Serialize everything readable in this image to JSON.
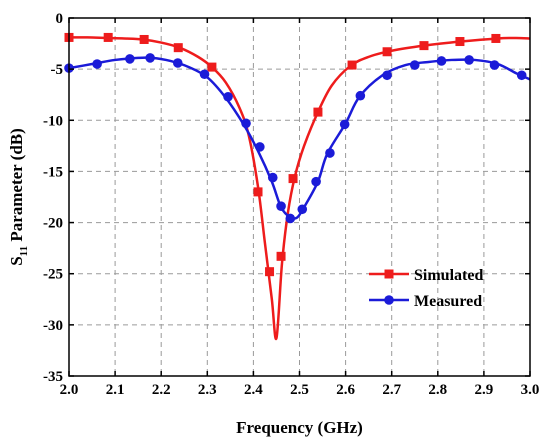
{
  "chart_data": {
    "type": "line",
    "xlabel": "Frequency (GHz)",
    "ylabel_parts": [
      "S",
      "11",
      " Parameter (dB)"
    ],
    "xlim": [
      2.0,
      3.0
    ],
    "ylim": [
      -35,
      0
    ],
    "x_ticks": [
      "2.0",
      "2.1",
      "2.2",
      "2.3",
      "2.4",
      "2.5",
      "2.6",
      "2.7",
      "2.8",
      "2.9",
      "3.0"
    ],
    "y_ticks": [
      "0",
      "-5",
      "-10",
      "-15",
      "-20",
      "-25",
      "-30",
      "-35"
    ],
    "x_tick_values": [
      2.0,
      2.1,
      2.2,
      2.3,
      2.4,
      2.5,
      2.6,
      2.7,
      2.8,
      2.9,
      3.0
    ],
    "y_tick_values": [
      0,
      -5,
      -10,
      -15,
      -20,
      -25,
      -30,
      -35
    ],
    "grid": true,
    "legend_position": "lower-right",
    "series": [
      {
        "name": "Simulated",
        "color": "#ee1c1c",
        "marker": "square",
        "x": [
          2.0,
          2.04,
          2.08,
          2.12,
          2.16,
          2.2,
          2.24,
          2.28,
          2.31,
          2.34,
          2.37,
          2.39,
          2.41,
          2.425,
          2.44,
          2.45,
          2.462,
          2.475,
          2.49,
          2.51,
          2.54,
          2.57,
          2.61,
          2.65,
          2.7,
          2.77,
          2.85,
          2.93,
          2.97,
          3.0
        ],
        "y": [
          -1.9,
          -1.9,
          -1.95,
          -2.0,
          -2.1,
          -2.4,
          -2.9,
          -3.8,
          -4.8,
          -6.3,
          -8.8,
          -11.5,
          -16.5,
          -22.0,
          -27.5,
          -31.3,
          -24.0,
          -19.0,
          -15.5,
          -12.5,
          -9.2,
          -6.6,
          -4.7,
          -3.8,
          -3.2,
          -2.7,
          -2.3,
          -2.0,
          -1.95,
          -2.0
        ],
        "marker_x": [
          2.0,
          2.085,
          2.163,
          2.237,
          2.31,
          2.41,
          2.435,
          2.46,
          2.486,
          2.54,
          2.614,
          2.69,
          2.77,
          2.848,
          2.926
        ],
        "marker_y": [
          -1.9,
          -1.9,
          -2.1,
          -2.9,
          -4.8,
          -17.0,
          -24.8,
          -23.3,
          -15.7,
          -9.2,
          -4.6,
          -3.3,
          -2.7,
          -2.3,
          -2.0
        ]
      },
      {
        "name": "Measured",
        "color": "#1b1bd8",
        "marker": "circle",
        "x": [
          2.0,
          2.05,
          2.1,
          2.15,
          2.18,
          2.22,
          2.26,
          2.3,
          2.34,
          2.38,
          2.41,
          2.44,
          2.46,
          2.48,
          2.495,
          2.51,
          2.54,
          2.56,
          2.6,
          2.63,
          2.68,
          2.73,
          2.78,
          2.83,
          2.88,
          2.93,
          2.97,
          3.0
        ],
        "y": [
          -4.9,
          -4.5,
          -4.1,
          -3.9,
          -3.9,
          -4.2,
          -4.8,
          -5.8,
          -7.8,
          -10.5,
          -13.0,
          -16.0,
          -18.5,
          -19.5,
          -19.5,
          -18.5,
          -16.0,
          -13.3,
          -10.3,
          -7.7,
          -5.6,
          -4.6,
          -4.3,
          -4.1,
          -4.1,
          -4.5,
          -5.4,
          -6.0
        ],
        "marker_x": [
          2.0,
          2.061,
          2.132,
          2.176,
          2.236,
          2.294,
          2.345,
          2.384,
          2.414,
          2.442,
          2.46,
          2.48,
          2.506,
          2.536,
          2.566,
          2.598,
          2.632,
          2.69,
          2.75,
          2.808,
          2.868,
          2.923,
          2.982
        ],
        "marker_y": [
          -4.9,
          -4.5,
          -4.0,
          -3.9,
          -4.4,
          -5.5,
          -7.7,
          -10.3,
          -12.6,
          -15.6,
          -18.4,
          -19.6,
          -18.7,
          -16.0,
          -13.2,
          -10.4,
          -7.6,
          -5.6,
          -4.6,
          -4.2,
          -4.1,
          -4.6,
          -5.6
        ]
      }
    ]
  }
}
